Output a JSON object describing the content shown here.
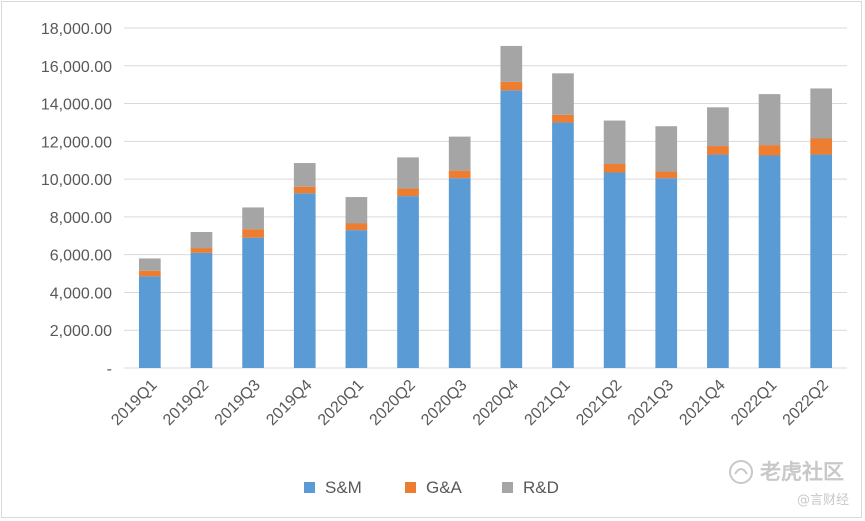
{
  "chart_data": {
    "type": "bar",
    "stacked": true,
    "categories": [
      "2019Q1",
      "2019Q2",
      "2019Q3",
      "2019Q4",
      "2020Q1",
      "2020Q2",
      "2020Q3",
      "2020Q4",
      "2021Q1",
      "2021Q2",
      "2021Q3",
      "2021Q4",
      "2022Q1",
      "2022Q2"
    ],
    "series": [
      {
        "name": "S&M",
        "color": "#5b9bd5",
        "values": [
          4850,
          6100,
          6900,
          9250,
          7300,
          9100,
          10050,
          14700,
          13000,
          10350,
          10050,
          11300,
          11250,
          11300
        ]
      },
      {
        "name": "G&A",
        "color": "#ed7d31",
        "values": [
          300,
          250,
          450,
          350,
          350,
          400,
          400,
          450,
          400,
          450,
          350,
          450,
          550,
          850
        ]
      },
      {
        "name": "R&D",
        "color": "#a5a5a5",
        "values": [
          650,
          850,
          1150,
          1250,
          1400,
          1650,
          1800,
          1900,
          2200,
          2300,
          2400,
          2050,
          2700,
          2650
        ]
      }
    ],
    "y_ticks": [
      "-",
      "2,000.00",
      "4,000.00",
      "6,000.00",
      "8,000.00",
      "10,000.00",
      "12,000.00",
      "14,000.00",
      "16,000.00",
      "18,000.00"
    ],
    "ylim": [
      0,
      18000
    ],
    "y_step": 2000,
    "grid": true,
    "legend_position": "bottom-center",
    "title": "",
    "xlabel": "",
    "ylabel": ""
  },
  "watermark": {
    "main_text": "老虎社区",
    "sub_text": "@言财经"
  }
}
